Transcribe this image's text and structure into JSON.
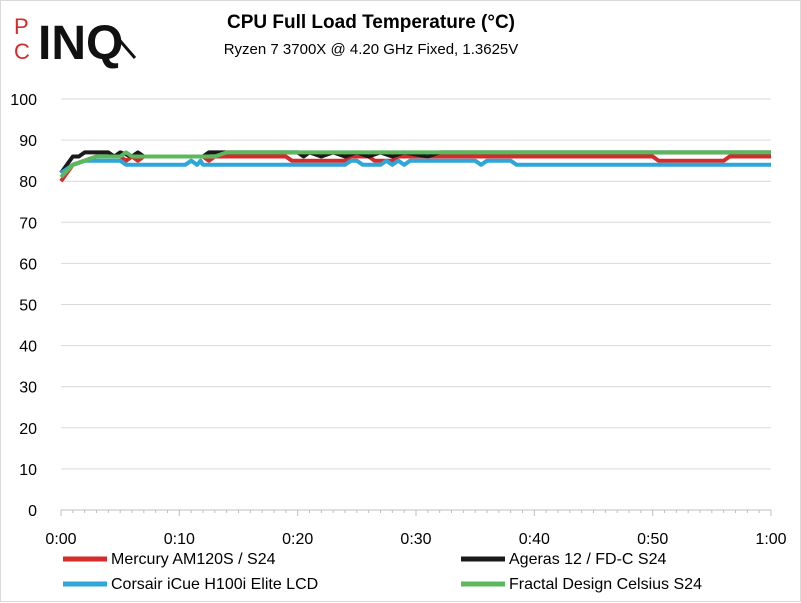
{
  "logo": {
    "p": "P",
    "c": "C",
    "main": "INQ"
  },
  "chart_data": {
    "type": "line",
    "title": "CPU Full Load Temperature (°C)",
    "subtitle": "Ryzen 7 3700X @ 4.20 GHz Fixed, 1.3625V",
    "xlabel": "",
    "ylabel": "",
    "x_unit": "minutes",
    "xlim": [
      0,
      60
    ],
    "ylim": [
      0,
      100
    ],
    "x_ticks": [
      0,
      10,
      20,
      30,
      40,
      50,
      60
    ],
    "x_tick_labels": [
      "0:00",
      "0:10",
      "0:20",
      "0:30",
      "0:40",
      "0:50",
      "1:00"
    ],
    "y_ticks": [
      0,
      10,
      20,
      30,
      40,
      50,
      60,
      70,
      80,
      90,
      100
    ],
    "y_tick_labels": [
      "0",
      "10",
      "20",
      "30",
      "40",
      "50",
      "60",
      "70",
      "80",
      "90",
      "100"
    ],
    "grid": true,
    "legend_position": "bottom",
    "series": [
      {
        "name": "Mercury AM120S / S24",
        "color": "#d52b2b",
        "points": [
          [
            0,
            80
          ],
          [
            0.5,
            82
          ],
          [
            1,
            84
          ],
          [
            2,
            85
          ],
          [
            3,
            86
          ],
          [
            5,
            86
          ],
          [
            5.5,
            85
          ],
          [
            6,
            86
          ],
          [
            6.5,
            85
          ],
          [
            7,
            86
          ],
          [
            12,
            86
          ],
          [
            12.5,
            85
          ],
          [
            13,
            86
          ],
          [
            19,
            86
          ],
          [
            19.5,
            85
          ],
          [
            24,
            85
          ],
          [
            24.5,
            86
          ],
          [
            26,
            86
          ],
          [
            26.5,
            85
          ],
          [
            28,
            85
          ],
          [
            28.5,
            86
          ],
          [
            50,
            86
          ],
          [
            50.5,
            85
          ],
          [
            56,
            85
          ],
          [
            56.5,
            86
          ],
          [
            60,
            86
          ]
        ]
      },
      {
        "name": "Ageras 12 / FD-C S24",
        "color": "#1a1a1a",
        "points": [
          [
            0,
            82
          ],
          [
            1,
            86
          ],
          [
            1.5,
            86
          ],
          [
            2,
            87
          ],
          [
            4,
            87
          ],
          [
            4.5,
            86
          ],
          [
            5,
            87
          ],
          [
            6,
            86
          ],
          [
            6.5,
            87
          ],
          [
            7,
            86
          ],
          [
            12,
            86
          ],
          [
            12.5,
            87
          ],
          [
            14,
            87
          ],
          [
            20,
            87
          ],
          [
            20.5,
            86
          ],
          [
            21,
            87
          ],
          [
            22,
            86
          ],
          [
            23,
            87
          ],
          [
            24,
            86
          ],
          [
            25,
            87
          ],
          [
            26,
            86
          ],
          [
            27,
            87
          ],
          [
            28,
            86
          ],
          [
            29,
            87
          ],
          [
            31,
            86
          ],
          [
            32,
            87
          ],
          [
            60,
            87
          ]
        ]
      },
      {
        "name": "Corsair iCue H100i Elite LCD",
        "color": "#2ea6d9",
        "points": [
          [
            0,
            82
          ],
          [
            1,
            84
          ],
          [
            2,
            85
          ],
          [
            5,
            85
          ],
          [
            5.5,
            84
          ],
          [
            10.5,
            84
          ],
          [
            11,
            85
          ],
          [
            11.5,
            84
          ],
          [
            11.8,
            85
          ],
          [
            12,
            84
          ],
          [
            24,
            84
          ],
          [
            24.5,
            85
          ],
          [
            25,
            85
          ],
          [
            25.5,
            84
          ],
          [
            27,
            84
          ],
          [
            27.5,
            85
          ],
          [
            28,
            84
          ],
          [
            28.5,
            85
          ],
          [
            29,
            84
          ],
          [
            29.5,
            85
          ],
          [
            35,
            85
          ],
          [
            35.5,
            84
          ],
          [
            36,
            85
          ],
          [
            38,
            85
          ],
          [
            38.5,
            84
          ],
          [
            60,
            84
          ]
        ]
      },
      {
        "name": "Fractal Design Celsius S24",
        "color": "#5cb85c",
        "points": [
          [
            0,
            81
          ],
          [
            1,
            84
          ],
          [
            2,
            85
          ],
          [
            3,
            86
          ],
          [
            5,
            86
          ],
          [
            5.5,
            87
          ],
          [
            6,
            86
          ],
          [
            13,
            86
          ],
          [
            14,
            87
          ],
          [
            60,
            87
          ]
        ]
      }
    ]
  }
}
